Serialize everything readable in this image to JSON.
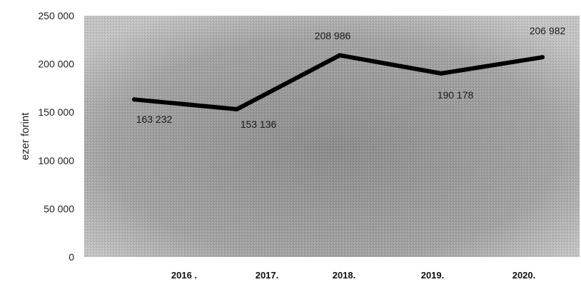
{
  "chart_data": {
    "type": "line",
    "categories": [
      "2016 .",
      "2017.",
      "2018.",
      "2019.",
      "2020."
    ],
    "series": [
      {
        "values": [
          163232,
          153136,
          208986,
          190178,
          206982
        ]
      }
    ],
    "data_labels": [
      "163 232",
      "153 136",
      "208 986",
      "190 178",
      "206 982"
    ],
    "ylabel": "ezer forint",
    "ylim": [
      0,
      250000
    ],
    "yticks": [
      0,
      50000,
      100000,
      150000,
      200000,
      250000
    ],
    "ytick_labels": [
      "0",
      "50 000",
      "100 000",
      "150 000",
      "200 000",
      "250 000"
    ],
    "grid": false,
    "line_color": "#000000",
    "plot_background": "#9a9a9a"
  }
}
